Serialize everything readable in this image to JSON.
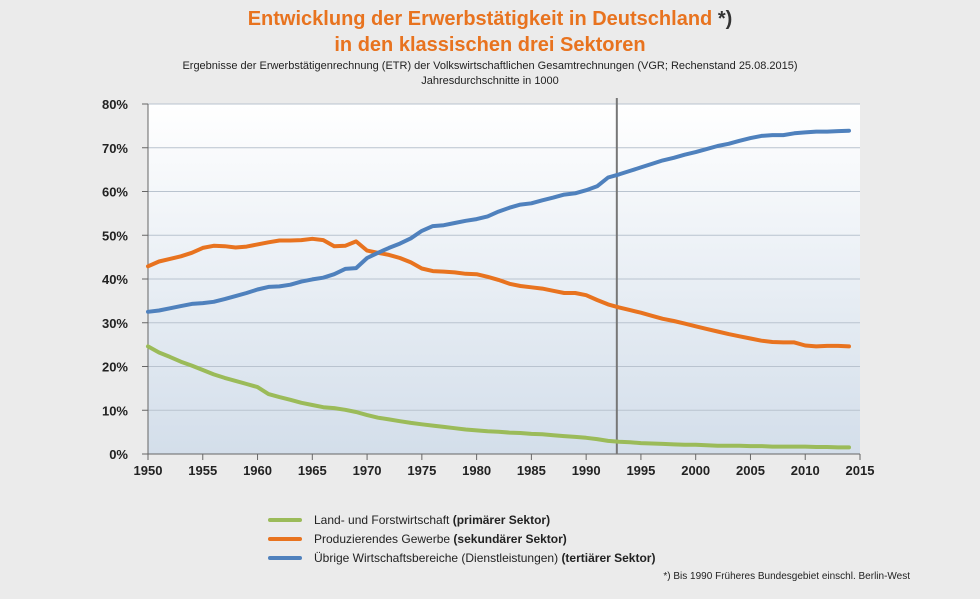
{
  "title_line1": "Entwicklung der Erwerbstätigkeit in Deutschland",
  "title_mark": "*)",
  "title_line2": "in den klassischen drei Sektoren",
  "subtitle": "Ergebnisse der Erwerbstätigenrechnung (ETR) der Volkswirtschaftlichen Gesamtrechnungen (VGR; Rechenstand 25.08.2015)",
  "subtitle2": "Jahresdurchschnitte in 1000",
  "footnote": "*) Bis 1990 Früheres Bundesgebiet einschl. Berlin-West",
  "legend": [
    {
      "text": "Land- und Forstwirtschaft ",
      "bold": "(primärer Sektor)",
      "color": "#9bbb59"
    },
    {
      "text": "Produzierendes Gewerbe ",
      "bold": "(sekundärer Sektor)",
      "color": "#e8731f"
    },
    {
      "text": "Übrige Wirtschaftsbereiche (Dienstleistungen) ",
      "bold": "(tertiärer Sektor)",
      "color": "#4f81bd"
    }
  ],
  "chart_data": {
    "type": "line",
    "xlim": [
      1950,
      2015
    ],
    "ylim": [
      0,
      80
    ],
    "x_ticks": [
      1950,
      1955,
      1960,
      1965,
      1970,
      1975,
      1980,
      1985,
      1990,
      1995,
      2000,
      2005,
      2010,
      2015
    ],
    "y_ticks": [
      "0%",
      "10%",
      "20%",
      "30%",
      "40%",
      "50%",
      "60%",
      "70%",
      "80%"
    ],
    "y_tick_values": [
      0,
      10,
      20,
      30,
      40,
      50,
      60,
      70,
      80
    ],
    "vertical_marker_x": 1992.8,
    "series": [
      {
        "color": "#9bbb59",
        "x": [
          1950,
          1951,
          1952,
          1953,
          1954,
          1955,
          1956,
          1957,
          1958,
          1959,
          1960,
          1961,
          1962,
          1963,
          1964,
          1965,
          1966,
          1967,
          1968,
          1969,
          1970,
          1971,
          1972,
          1973,
          1974,
          1975,
          1976,
          1977,
          1978,
          1979,
          1980,
          1981,
          1982,
          1983,
          1984,
          1985,
          1986,
          1987,
          1988,
          1989,
          1990,
          1991,
          1992,
          1993,
          1994,
          1995,
          1996,
          1997,
          1998,
          1999,
          2000,
          2001,
          2002,
          2003,
          2004,
          2005,
          2006,
          2007,
          2008,
          2009,
          2010,
          2011,
          2012,
          2013,
          2014
        ],
        "values": [
          24.6,
          23.2,
          22.2,
          21.1,
          20.2,
          19.2,
          18.2,
          17.4,
          16.7,
          16.0,
          15.3,
          13.7,
          13.0,
          12.4,
          11.7,
          11.2,
          10.7,
          10.5,
          10.1,
          9.6,
          8.9,
          8.3,
          7.9,
          7.5,
          7.1,
          6.8,
          6.5,
          6.2,
          5.9,
          5.6,
          5.4,
          5.2,
          5.1,
          4.9,
          4.8,
          4.6,
          4.5,
          4.3,
          4.1,
          3.9,
          3.7,
          3.4,
          3.0,
          2.8,
          2.7,
          2.5,
          2.4,
          2.3,
          2.2,
          2.1,
          2.1,
          2.0,
          1.9,
          1.9,
          1.9,
          1.8,
          1.8,
          1.7,
          1.7,
          1.7,
          1.7,
          1.6,
          1.6,
          1.5,
          1.5
        ]
      },
      {
        "color": "#e8731f",
        "x": [
          1950,
          1951,
          1952,
          1953,
          1954,
          1955,
          1956,
          1957,
          1958,
          1959,
          1960,
          1961,
          1962,
          1963,
          1964,
          1965,
          1966,
          1967,
          1968,
          1969,
          1970,
          1971,
          1972,
          1973,
          1974,
          1975,
          1976,
          1977,
          1978,
          1979,
          1980,
          1981,
          1982,
          1983,
          1984,
          1985,
          1986,
          1987,
          1988,
          1989,
          1990,
          1991,
          1992,
          1993,
          1994,
          1995,
          1996,
          1997,
          1998,
          1999,
          2000,
          2001,
          2002,
          2003,
          2004,
          2005,
          2006,
          2007,
          2008,
          2009,
          2010,
          2011,
          2012,
          2013,
          2014
        ],
        "values": [
          42.9,
          44.0,
          44.6,
          45.2,
          46.0,
          47.1,
          47.6,
          47.5,
          47.2,
          47.4,
          47.9,
          48.4,
          48.8,
          48.8,
          48.9,
          49.2,
          48.9,
          47.5,
          47.6,
          48.6,
          46.5,
          46.0,
          45.5,
          44.8,
          43.8,
          42.4,
          41.8,
          41.7,
          41.5,
          41.2,
          41.1,
          40.5,
          39.8,
          38.9,
          38.4,
          38.1,
          37.8,
          37.3,
          36.8,
          36.8,
          36.3,
          35.2,
          34.2,
          33.5,
          32.9,
          32.3,
          31.6,
          30.9,
          30.4,
          29.8,
          29.2,
          28.6,
          28.0,
          27.4,
          26.9,
          26.4,
          25.9,
          25.6,
          25.5,
          25.5,
          24.8,
          24.6,
          24.7,
          24.7,
          24.6
        ]
      },
      {
        "color": "#4f81bd",
        "x": [
          1950,
          1951,
          1952,
          1953,
          1954,
          1955,
          1956,
          1957,
          1958,
          1959,
          1960,
          1961,
          1962,
          1963,
          1964,
          1965,
          1966,
          1967,
          1968,
          1969,
          1970,
          1971,
          1972,
          1973,
          1974,
          1975,
          1976,
          1977,
          1978,
          1979,
          1980,
          1981,
          1982,
          1983,
          1984,
          1985,
          1986,
          1987,
          1988,
          1989,
          1990,
          1991,
          1992,
          1993,
          1994,
          1995,
          1996,
          1997,
          1998,
          1999,
          2000,
          2001,
          2002,
          2003,
          2004,
          2005,
          2006,
          2007,
          2008,
          2009,
          2010,
          2011,
          2012,
          2013,
          2014
        ],
        "values": [
          32.5,
          32.8,
          33.3,
          33.8,
          34.3,
          34.5,
          34.8,
          35.4,
          36.1,
          36.8,
          37.6,
          38.2,
          38.3,
          38.7,
          39.4,
          39.9,
          40.3,
          41.1,
          42.3,
          42.5,
          44.8,
          46.0,
          47.1,
          48.1,
          49.3,
          51.0,
          52.1,
          52.3,
          52.8,
          53.3,
          53.7,
          54.3,
          55.4,
          56.3,
          57.0,
          57.3,
          58.0,
          58.6,
          59.3,
          59.6,
          60.3,
          61.2,
          63.2,
          63.9,
          64.7,
          65.5,
          66.3,
          67.1,
          67.7,
          68.4,
          69.0,
          69.7,
          70.4,
          70.9,
          71.6,
          72.2,
          72.7,
          72.9,
          72.9,
          73.3,
          73.5,
          73.7,
          73.7,
          73.8,
          73.9
        ]
      }
    ]
  }
}
